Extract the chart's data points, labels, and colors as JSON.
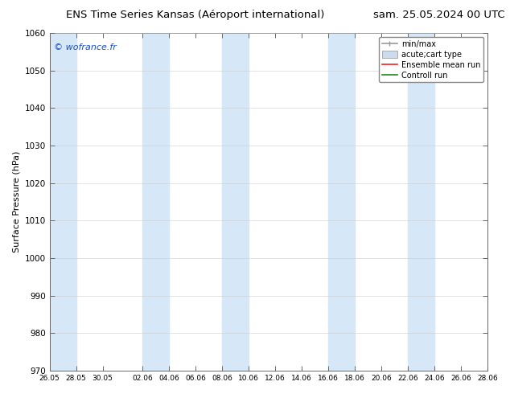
{
  "title_left": "ENS Time Series Kansas (Aéroport international)",
  "title_right": "sam. 25.05.2024 00 UTC",
  "ylabel": "Surface Pressure (hPa)",
  "ylim": [
    970,
    1060
  ],
  "yticks": [
    970,
    980,
    990,
    1000,
    1010,
    1020,
    1030,
    1040,
    1050,
    1060
  ],
  "xtick_labels": [
    "26.05",
    "28.05",
    "30.05",
    "02.06",
    "04.06",
    "06.06",
    "08.06",
    "10.06",
    "12.06",
    "14.06",
    "16.06",
    "18.06",
    "20.06",
    "22.06",
    "24.06",
    "26.06",
    "28.06"
  ],
  "xtick_days": [
    0,
    2,
    4,
    7,
    9,
    11,
    13,
    15,
    17,
    19,
    21,
    23,
    25,
    27,
    29,
    31,
    33
  ],
  "xlim_days": [
    0,
    33
  ],
  "background_color": "#ffffff",
  "plot_bg_color": "#ffffff",
  "band_color": "#d6e8f7",
  "watermark_text": "© wofrance.fr",
  "watermark_color": "#1a4fbd",
  "legend_entries": [
    "min/max",
    "acute;cart type",
    "Ensemble mean run",
    "Controll run"
  ],
  "title_fontsize": 9.5,
  "ylabel_fontsize": 8,
  "ytick_fontsize": 7.5,
  "xtick_fontsize": 6.5,
  "watermark_fontsize": 8,
  "legend_fontsize": 7,
  "shaded_bands": [
    [
      0,
      2
    ],
    [
      6.5,
      8.5
    ],
    [
      12.5,
      14.5
    ],
    [
      20,
      22
    ],
    [
      26.5,
      29
    ]
  ]
}
